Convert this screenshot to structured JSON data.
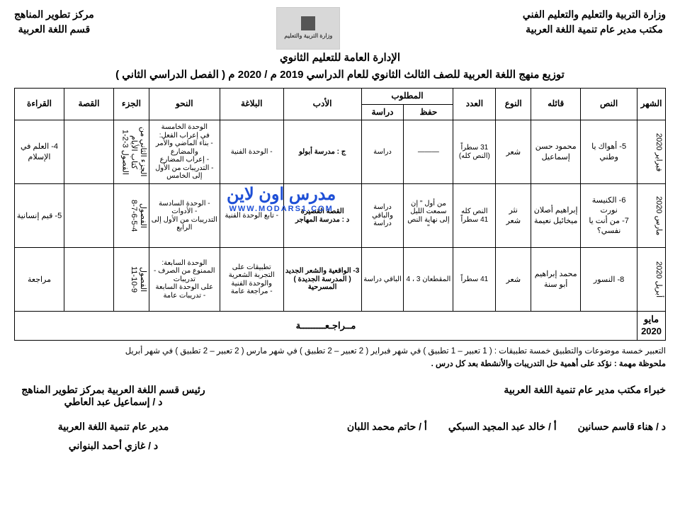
{
  "header": {
    "right_line1": "وزارة التربية والتعليم والتعليم الفني",
    "right_line2": "مكتب مدير عام تنمية اللغة العربية",
    "left_line1": "مركز تطوير المناهج",
    "left_line2": "قسم اللغة العربية",
    "admin_line": "الإدارة العامة للتعليم الثانوي",
    "title_main": "توزيع منهج اللغة العربية للصف الثالث الثانوي للعام الدراسي  2019 م / 2020 م",
    "title_semester": "( الفصل الدراسي الثاني )"
  },
  "watermark": {
    "ar": "مدرس اون لاين",
    "en": "WWW.MODARS1.COM"
  },
  "columns": {
    "month": "الشهر",
    "text": "النص",
    "author": "قائله",
    "type": "النوع",
    "count": "العدد",
    "required": "المطلوب",
    "hifz": "حفظ",
    "dirasa": "دراسة",
    "adab": "الأدب",
    "balagha": "البلاغة",
    "nahw": "النحو",
    "juz": "الجزء",
    "qissa": "القصة",
    "qiraa": "القراءة"
  },
  "rows": [
    {
      "month": "فبراير 2020",
      "text": "5- أهواك يا وطني",
      "author": "محمود حسن إسماعيل",
      "type": "شعر",
      "count": "31 سطراً (النص كله)",
      "hifz": "———",
      "dirasa": "دراسة",
      "adab": "ج : مدرسة أبولو",
      "balagha": "- الوحدة الفنية",
      "nahw": "الوحدة الخامسة\nفي إعراب الفعل:\n- بناء الماضي والأمر والمضارع\n- إعراب المضارع\n- التدريبات من الأول إلى الخامس",
      "juz": "الجزء الثاني من كتاب الأيام\nالفصول 3-2-1",
      "qissa": "",
      "qiraa": "4- العلم في الإسلام"
    },
    {
      "month": "مارس 2020",
      "text": "6- الكنيسة نورت\n7- من أنت يا نفسي؟",
      "author": "إبراهيم أصلان\nميخائيل نعيمة",
      "type": "نثر\nشعر",
      "count": "النص كله\n41 سطراً",
      "hifz": "من أول \" إن سمعت الليل إلى نهاية النص \"",
      "dirasa": "دراسة\nوالباقي دراسة",
      "adab": "القصة القصيرة\nد : مدرسة المهاجر",
      "balagha": "- تابع الوحدة الفنية",
      "nahw": "- الوحدة السادسة\n- الأدوات\nالتدريبات من الأول إلى الرابع",
      "juz": "الفصول\n8-7-6-5-4",
      "qissa": "",
      "qiraa": "5- قيم إنسانية"
    },
    {
      "month": "أبريل 2020",
      "text": "8- النسور",
      "author": "محمد إبراهيم أبو سنة",
      "type": "شعر",
      "count": "41 سطراً",
      "hifz": "المقطعان 3 ، 4",
      "dirasa": "الباقي دراسة",
      "adab": "3- الواقعية والشعر الجديد\n( المدرسة الجديدة )\nالمسرحية",
      "balagha": "تطبيقات على التجربة الشعرية والوحدة الفنية\n- مراجعة عامة",
      "nahw": "الوحدة السابعة:\nالممنوع من الصرف - تدريبات\nعلى الوحدة السابعة\n- تدريبات عامة",
      "juz": "الفصول\n11-10-9",
      "qissa": "",
      "qiraa": "مراجعة"
    }
  ],
  "review_row": {
    "month": "مايو 2020",
    "text": "مــراجـعـــــــــة"
  },
  "notes": {
    "line1": "التعبير خمسة موضوعات والتطبيق خمسة تطبيقات : ( 1 تعبير – 1 تطبيق ) في شهر فبراير ( 2 تعبير – 2 تطبيق ) في شهر مارس              ( 2 تعبير – 2 تطبيق ) في شهر أبريل",
    "line2_label": "ملحوظة مهمة :",
    "line2_text": "نؤكد على أهمية حل التدريبات والأنشطة بعد كل درس ."
  },
  "signatures": {
    "experts_title": "خبراء مكتب مدير عام تنمية اللغة العربية",
    "head_title": "رئيس قسم اللغة العربية بمركز تطوير المناهج",
    "head_name": "د / إسماعيل عبد العاطي",
    "names": [
      "د / هناء قاسم حسانين",
      "أ / خالد عبد المجيد السبكي",
      "أ / حاتم محمد اللبان"
    ],
    "dir_title": "مدير عام تنمية اللغة العربية",
    "dir_name": "د / غازي أحمد البنواني"
  }
}
